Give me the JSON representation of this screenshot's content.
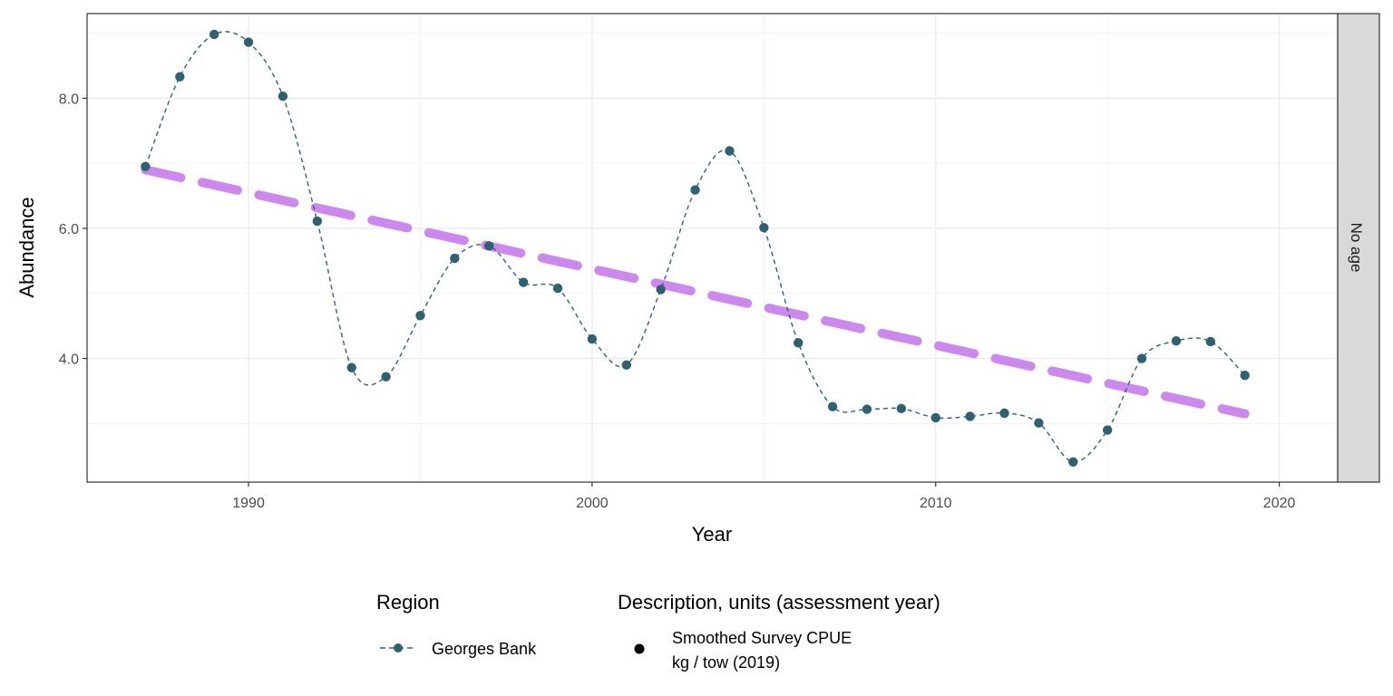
{
  "chart_data": {
    "type": "line",
    "xlabel": "Year",
    "ylabel": "Abundance",
    "xlim": [
      1985.3,
      2021.7
    ],
    "ylim": [
      2.1,
      9.3
    ],
    "x_ticks": [
      1990,
      2000,
      2010,
      2020
    ],
    "y_ticks": [
      4.0,
      6.0,
      8.0
    ],
    "y_tick_labels": [
      "4.0",
      "6.0",
      "8.0"
    ],
    "grid": true,
    "facet_label": "No age",
    "series": [
      {
        "name": "Georges Bank",
        "color": "#2e6272",
        "style": "dashed-line-with-points",
        "x": [
          1987,
          1988,
          1989,
          1990,
          1991,
          1992,
          1993,
          1994,
          1995,
          1996,
          1997,
          1998,
          1999,
          2000,
          2001,
          2002,
          2003,
          2004,
          2005,
          2006,
          2007,
          2008,
          2009,
          2010,
          2011,
          2012,
          2013,
          2014,
          2015,
          2016,
          2017,
          2018,
          2019
        ],
        "y": [
          6.95,
          8.33,
          8.98,
          8.86,
          8.03,
          6.11,
          3.86,
          3.72,
          4.66,
          5.54,
          5.73,
          5.17,
          5.08,
          4.3,
          3.9,
          5.06,
          6.59,
          7.19,
          6.01,
          4.24,
          3.26,
          3.22,
          3.23,
          3.09,
          3.11,
          3.16,
          3.01,
          2.41,
          2.9,
          4.0,
          4.27,
          4.26,
          3.74
        ]
      }
    ],
    "trend": {
      "color": "#cc88ee",
      "style": "thick-dashed",
      "x": [
        1987,
        2019
      ],
      "y": [
        6.9,
        3.15
      ]
    },
    "legend": {
      "placement": "bottom",
      "region_title": "Region",
      "region_entry": "Georges Bank",
      "description_title": "Description, units (assessment year)",
      "description_line1": "Smoothed Survey CPUE",
      "description_line2": "kg / tow (2019)"
    }
  }
}
